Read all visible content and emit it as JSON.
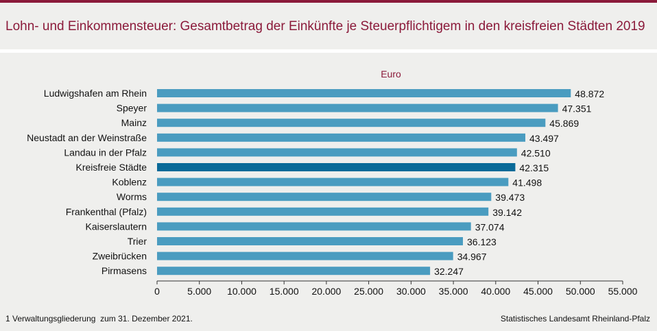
{
  "title": "Lohn- und Einkommensteuer: Gesamtbetrag der Einkünfte je Steuerpflichtigem in den kreisfreien Städten 2019",
  "footnote": "1 Verwaltungsgliederung  zum 31. Dezember 2021.",
  "source": "Statistisches Landesamt  Rheinland-Pfalz",
  "colors": {
    "accent": "#8b1a3a",
    "bar": "#4a9cc0",
    "bar_highlight": "#0a6a98",
    "background": "#efefed"
  },
  "chart_data": {
    "type": "bar",
    "orientation": "horizontal",
    "unit_label": "Euro",
    "categories": [
      "Ludwigshafen am Rhein",
      "Speyer",
      "Mainz",
      "Neustadt an der Weinstraße",
      "Landau in der Pfalz",
      "Kreisfreie Städte",
      "Koblenz",
      "Worms",
      "Frankenthal (Pfalz)",
      "Kaiserslautern",
      "Trier",
      "Zweibrücken",
      "Pirmasens"
    ],
    "values": [
      48872,
      47351,
      45869,
      43497,
      42510,
      42315,
      41498,
      39473,
      39142,
      37074,
      36123,
      34967,
      32247
    ],
    "value_labels": [
      "48.872",
      "47.351",
      "45.869",
      "43.497",
      "42.510",
      "42.315",
      "41.498",
      "39.473",
      "39.142",
      "37.074",
      "36.123",
      "34.967",
      "32.247"
    ],
    "highlight_category": "Kreisfreie Städte",
    "xlim": [
      0,
      55000
    ],
    "x_ticks": [
      0,
      5000,
      10000,
      15000,
      20000,
      25000,
      30000,
      35000,
      40000,
      45000,
      50000,
      55000
    ],
    "x_tick_labels": [
      "0",
      "5.000",
      "10.000",
      "15.000",
      "20.000",
      "25.000",
      "30.000",
      "35.000",
      "40.000",
      "45.000",
      "50.000",
      "55.000"
    ],
    "grid": false,
    "legend": "none"
  }
}
